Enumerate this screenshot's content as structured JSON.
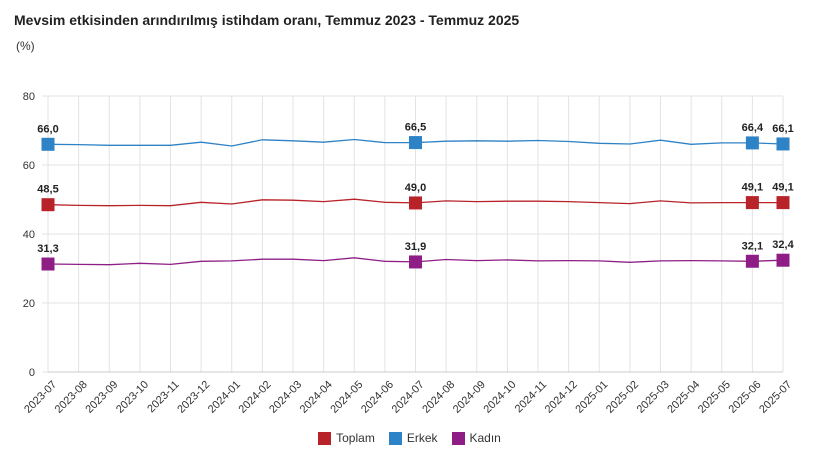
{
  "header": {
    "title": "Mevsim etkisinden arındırılmış istihdam oranı, Temmuz 2023 - Temmuz 2025",
    "unit": "(%)"
  },
  "colors": {
    "toplam": "#b8232a",
    "erkek": "#2e82c6",
    "kadin": "#8e1e86",
    "grid": "#e3e3e3"
  },
  "chart_data": {
    "type": "line",
    "x": [
      "2023-07",
      "2023-08",
      "2023-09",
      "2023-10",
      "2023-11",
      "2023-12",
      "2024-01",
      "2024-02",
      "2024-03",
      "2024-04",
      "2024-05",
      "2024-06",
      "2024-07",
      "2024-08",
      "2024-09",
      "2024-10",
      "2024-11",
      "2024-12",
      "2025-01",
      "2025-02",
      "2025-03",
      "2025-04",
      "2025-05",
      "2025-06",
      "2025-07"
    ],
    "ylim": [
      0,
      80
    ],
    "yticks": [
      0,
      20,
      40,
      60,
      80
    ],
    "grid": true,
    "legend_position": "bottom-center",
    "series": [
      {
        "name": "Toplam",
        "color": "#b8232a",
        "values": [
          48.5,
          48.3,
          48.2,
          48.3,
          48.2,
          49.2,
          48.7,
          49.9,
          49.8,
          49.4,
          50.1,
          49.2,
          49.0,
          49.6,
          49.4,
          49.5,
          49.5,
          49.4,
          49.1,
          48.8,
          49.6,
          49.0,
          49.1,
          49.1,
          49.1
        ],
        "labels": {
          "0": "48,5",
          "12": "49,0",
          "23": "49,1",
          "24": "49,1"
        }
      },
      {
        "name": "Erkek",
        "color": "#2e82c6",
        "values": [
          66.0,
          65.9,
          65.7,
          65.7,
          65.7,
          66.6,
          65.5,
          67.3,
          67.0,
          66.6,
          67.4,
          66.5,
          66.5,
          66.9,
          67.0,
          66.9,
          67.1,
          66.8,
          66.3,
          66.1,
          67.2,
          66.0,
          66.4,
          66.4,
          66.1
        ],
        "labels": {
          "0": "66,0",
          "12": "66,5",
          "23": "66,4",
          "24": "66,1"
        }
      },
      {
        "name": "Kadın",
        "color": "#8e1e86",
        "values": [
          31.3,
          31.2,
          31.1,
          31.5,
          31.2,
          32.1,
          32.2,
          32.7,
          32.7,
          32.3,
          33.1,
          32.1,
          31.9,
          32.6,
          32.3,
          32.5,
          32.2,
          32.3,
          32.2,
          31.8,
          32.2,
          32.3,
          32.2,
          32.1,
          32.4
        ],
        "labels": {
          "0": "31,3",
          "12": "31,9",
          "23": "32,1",
          "24": "32,4"
        }
      }
    ]
  },
  "legend": {
    "items": [
      {
        "label": "Toplam",
        "color": "#b8232a"
      },
      {
        "label": "Erkek",
        "color": "#2e82c6"
      },
      {
        "label": "Kadın",
        "color": "#8e1e86"
      }
    ]
  }
}
